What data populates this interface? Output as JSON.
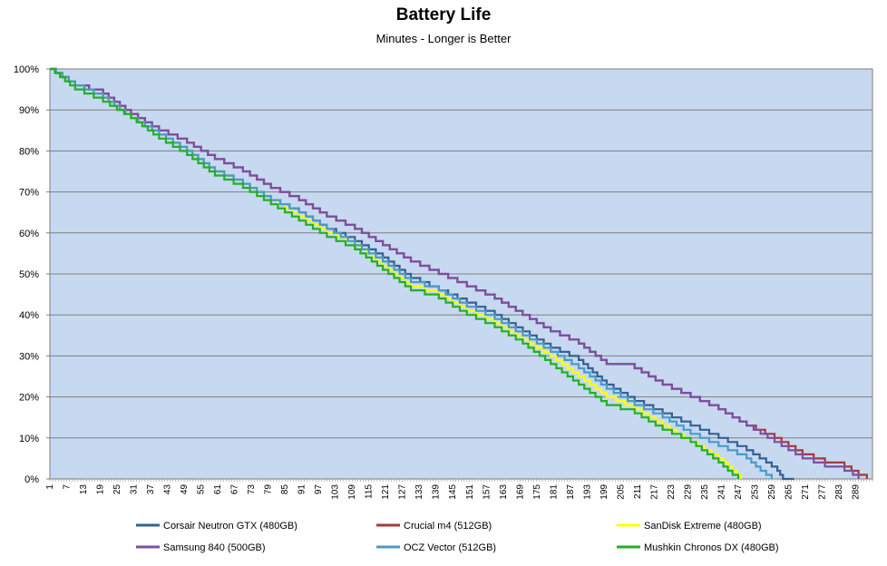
{
  "chart_data": {
    "type": "line",
    "title": "Battery Life",
    "subtitle": "Minutes - Longer is Better",
    "xlabel": "",
    "ylabel": "",
    "ylim": [
      0,
      100
    ],
    "y_ticks": [
      "0%",
      "10%",
      "20%",
      "30%",
      "40%",
      "50%",
      "60%",
      "70%",
      "80%",
      "90%",
      "100%"
    ],
    "x_ticks": [
      1,
      7,
      13,
      19,
      25,
      31,
      37,
      43,
      49,
      55,
      61,
      67,
      73,
      79,
      85,
      91,
      97,
      103,
      109,
      115,
      121,
      127,
      133,
      139,
      145,
      151,
      157,
      163,
      169,
      175,
      181,
      187,
      193,
      199,
      205,
      211,
      217,
      223,
      229,
      235,
      241,
      247,
      253,
      259,
      265,
      271,
      277,
      283,
      289
    ],
    "x_range": [
      1,
      295
    ],
    "plot_background": "#c6d9f1",
    "series": [
      {
        "name": "Corsair Neutron GTX (480GB)",
        "color": "#366092",
        "points": [
          [
            1,
            100
          ],
          [
            10,
            96
          ],
          [
            20,
            93
          ],
          [
            30,
            88
          ],
          [
            40,
            84
          ],
          [
            50,
            80
          ],
          [
            60,
            75
          ],
          [
            70,
            72
          ],
          [
            80,
            68
          ],
          [
            90,
            65
          ],
          [
            100,
            61
          ],
          [
            110,
            58
          ],
          [
            120,
            54
          ],
          [
            130,
            49
          ],
          [
            140,
            46
          ],
          [
            150,
            43
          ],
          [
            160,
            40
          ],
          [
            170,
            36
          ],
          [
            180,
            32
          ],
          [
            190,
            29
          ],
          [
            200,
            23
          ],
          [
            210,
            19
          ],
          [
            220,
            16
          ],
          [
            230,
            13
          ],
          [
            240,
            10
          ],
          [
            250,
            7
          ],
          [
            257,
            4
          ],
          [
            261,
            2
          ],
          [
            263,
            0
          ],
          [
            267,
            0
          ]
        ]
      },
      {
        "name": "Crucial m4 (512GB)",
        "color": "#a63838",
        "points": [
          [
            1,
            100
          ],
          [
            10,
            96
          ],
          [
            20,
            94
          ],
          [
            30,
            89
          ],
          [
            40,
            85
          ],
          [
            50,
            82
          ],
          [
            60,
            78
          ],
          [
            70,
            75
          ],
          [
            80,
            71
          ],
          [
            90,
            68
          ],
          [
            100,
            64
          ],
          [
            110,
            61
          ],
          [
            120,
            57
          ],
          [
            130,
            53
          ],
          [
            140,
            50
          ],
          [
            150,
            47
          ],
          [
            160,
            44
          ],
          [
            170,
            40
          ],
          [
            180,
            36
          ],
          [
            190,
            33
          ],
          [
            200,
            28
          ],
          [
            210,
            27
          ],
          [
            220,
            23
          ],
          [
            230,
            20
          ],
          [
            240,
            17
          ],
          [
            250,
            13
          ],
          [
            260,
            10
          ],
          [
            270,
            6
          ],
          [
            278,
            4
          ],
          [
            285,
            3
          ],
          [
            290,
            1
          ],
          [
            293,
            0
          ]
        ]
      },
      {
        "name": "SanDisk Extreme (480GB)",
        "color": "#ffff00",
        "points": [
          [
            1,
            100
          ],
          [
            10,
            96
          ],
          [
            20,
            93
          ],
          [
            30,
            88
          ],
          [
            40,
            84
          ],
          [
            50,
            80
          ],
          [
            60,
            75
          ],
          [
            70,
            72
          ],
          [
            80,
            68
          ],
          [
            90,
            64
          ],
          [
            100,
            60
          ],
          [
            110,
            57
          ],
          [
            120,
            52
          ],
          [
            130,
            47
          ],
          [
            140,
            45
          ],
          [
            150,
            41
          ],
          [
            160,
            38
          ],
          [
            170,
            34
          ],
          [
            180,
            30
          ],
          [
            190,
            25
          ],
          [
            200,
            20
          ],
          [
            210,
            17
          ],
          [
            220,
            13
          ],
          [
            230,
            9
          ],
          [
            240,
            5
          ],
          [
            245,
            2
          ],
          [
            248,
            0
          ]
        ]
      },
      {
        "name": "Samsung 840 (500GB)",
        "color": "#7b4fa0",
        "points": [
          [
            1,
            100
          ],
          [
            10,
            96
          ],
          [
            20,
            94
          ],
          [
            30,
            89
          ],
          [
            40,
            85
          ],
          [
            50,
            82
          ],
          [
            60,
            78
          ],
          [
            70,
            75
          ],
          [
            80,
            71
          ],
          [
            90,
            68
          ],
          [
            100,
            64
          ],
          [
            110,
            61
          ],
          [
            120,
            57
          ],
          [
            130,
            53
          ],
          [
            140,
            50
          ],
          [
            150,
            47
          ],
          [
            160,
            44
          ],
          [
            170,
            40
          ],
          [
            180,
            36
          ],
          [
            190,
            33
          ],
          [
            200,
            28
          ],
          [
            210,
            27
          ],
          [
            220,
            23
          ],
          [
            230,
            20
          ],
          [
            240,
            17
          ],
          [
            250,
            13
          ],
          [
            260,
            9
          ],
          [
            270,
            5
          ],
          [
            278,
            3
          ],
          [
            285,
            2
          ],
          [
            288,
            1
          ],
          [
            290,
            0
          ]
        ]
      },
      {
        "name": "OCZ Vector (512GB)",
        "color": "#4a9ac7",
        "points": [
          [
            1,
            100
          ],
          [
            10,
            96
          ],
          [
            20,
            93
          ],
          [
            30,
            88
          ],
          [
            40,
            84
          ],
          [
            50,
            80
          ],
          [
            60,
            75
          ],
          [
            70,
            72
          ],
          [
            80,
            68
          ],
          [
            90,
            65
          ],
          [
            100,
            61
          ],
          [
            110,
            57
          ],
          [
            120,
            53
          ],
          [
            130,
            48
          ],
          [
            140,
            46
          ],
          [
            150,
            42
          ],
          [
            160,
            39
          ],
          [
            170,
            35
          ],
          [
            180,
            31
          ],
          [
            190,
            27
          ],
          [
            200,
            22
          ],
          [
            210,
            18
          ],
          [
            220,
            15
          ],
          [
            230,
            11
          ],
          [
            240,
            8
          ],
          [
            250,
            5
          ],
          [
            255,
            2
          ],
          [
            259,
            0
          ]
        ]
      },
      {
        "name": "Mushkin Chronos DX (480GB)",
        "color": "#22b022",
        "points": [
          [
            1,
            100
          ],
          [
            10,
            95
          ],
          [
            20,
            92
          ],
          [
            30,
            88
          ],
          [
            40,
            83
          ],
          [
            50,
            79
          ],
          [
            60,
            74
          ],
          [
            70,
            71
          ],
          [
            80,
            67
          ],
          [
            90,
            63
          ],
          [
            100,
            59
          ],
          [
            110,
            56
          ],
          [
            120,
            51
          ],
          [
            130,
            46
          ],
          [
            140,
            44
          ],
          [
            150,
            40
          ],
          [
            160,
            37
          ],
          [
            170,
            33
          ],
          [
            180,
            28
          ],
          [
            190,
            23
          ],
          [
            200,
            18
          ],
          [
            210,
            16
          ],
          [
            220,
            12
          ],
          [
            230,
            9
          ],
          [
            240,
            4
          ],
          [
            245,
            1
          ],
          [
            247,
            0
          ]
        ]
      }
    ]
  }
}
